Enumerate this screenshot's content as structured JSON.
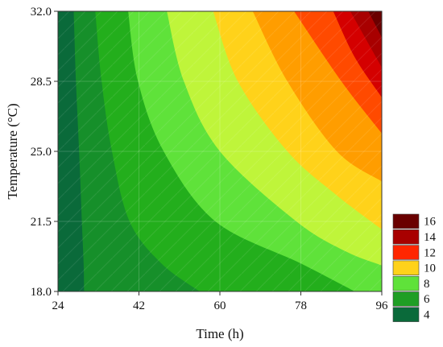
{
  "chart_data": {
    "type": "contour",
    "title": "",
    "xlabel": "Time (h)",
    "ylabel": "Temperature (°C)",
    "xlim": [
      24,
      96
    ],
    "ylim": [
      18.0,
      32.0
    ],
    "x_ticks": [
      "24",
      "42",
      "60",
      "78",
      "96"
    ],
    "y_ticks": [
      "18.0",
      "21.5",
      "25.0",
      "28.5",
      "32.0"
    ],
    "levels": [
      4,
      6,
      8,
      10,
      12,
      14,
      16
    ],
    "level_colors": [
      "#0a6a3a",
      "#1f9e24",
      "#5fe23a",
      "#ffd21a",
      "#ff2600",
      "#a80000",
      "#6a0000"
    ],
    "band_colors": [
      "#0a6a3a",
      "#168f2a",
      "#23ae1c",
      "#5fe23a",
      "#bff53a",
      "#ffd21a",
      "#ff9d00",
      "#ff4a00",
      "#d40000",
      "#a80000",
      "#6a0000"
    ],
    "legend": {
      "position": "right",
      "labels": [
        "16",
        "14",
        "12",
        "10",
        "8",
        "6",
        "4"
      ]
    },
    "grid": true,
    "contours": [
      {
        "value": 5,
        "points": [
          [
            29.8,
            18.0
          ],
          [
            29.7,
            19.4
          ],
          [
            29.3,
            21.5
          ],
          [
            28.7,
            25.0
          ],
          [
            28.0,
            28.5
          ],
          [
            27.5,
            32.0
          ]
        ]
      },
      {
        "value": 6,
        "points": [
          [
            55.5,
            18.0
          ],
          [
            47.0,
            19.4
          ],
          [
            39.9,
            21.5
          ],
          [
            36.0,
            25.0
          ],
          [
            33.7,
            28.5
          ],
          [
            32.3,
            32.0
          ]
        ]
      },
      {
        "value": 7,
        "points": [
          [
            90.0,
            18.0
          ],
          [
            78.0,
            19.4
          ],
          [
            59.0,
            21.5
          ],
          [
            47.5,
            25.0
          ],
          [
            41.8,
            28.5
          ],
          [
            39.6,
            32.0
          ]
        ]
      },
      {
        "value": 8,
        "points": [
          [
            96.0,
            19.3
          ],
          [
            88.0,
            20.0
          ],
          [
            77.0,
            21.5
          ],
          [
            60.0,
            25.0
          ],
          [
            52.0,
            28.5
          ],
          [
            48.2,
            32.0
          ]
        ]
      },
      {
        "value": 9,
        "points": [
          [
            96.0,
            21.1
          ],
          [
            86.0,
            22.8
          ],
          [
            75.0,
            25.0
          ],
          [
            64.0,
            28.5
          ],
          [
            58.5,
            32.0
          ]
        ]
      },
      {
        "value": 10,
        "points": [
          [
            96.0,
            23.5
          ],
          [
            86.0,
            25.0
          ],
          [
            75.0,
            28.5
          ],
          [
            67.3,
            32.0
          ]
        ]
      },
      {
        "value": 11,
        "points": [
          [
            96.0,
            25.9
          ],
          [
            87.0,
            28.5
          ],
          [
            76.5,
            32.0
          ]
        ]
      },
      {
        "value": 12,
        "points": [
          [
            96.0,
            27.7
          ],
          [
            90.0,
            29.7
          ],
          [
            85.2,
            32.0
          ]
        ]
      },
      {
        "value": 13,
        "points": [
          [
            96.0,
            29.2
          ],
          [
            89.0,
            32.0
          ]
        ]
      },
      {
        "value": 14,
        "points": [
          [
            96.0,
            30.7
          ],
          [
            93.0,
            32.0
          ]
        ]
      }
    ]
  }
}
